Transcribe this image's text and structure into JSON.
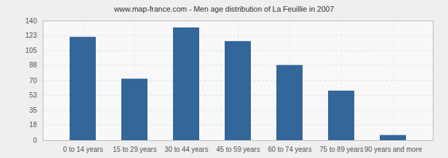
{
  "chart_data": {
    "type": "bar",
    "title": "www.map-france.com - Men age distribution of La Feuillie in 2007",
    "categories": [
      "0 to 14 years",
      "15 to 29 years",
      "30 to 44 years",
      "45 to 59 years",
      "60 to 74 years",
      "75 to 89 years",
      "90 years and more"
    ],
    "values": [
      121,
      72,
      132,
      116,
      88,
      58,
      6
    ],
    "color": "#336699",
    "ylim": [
      0,
      140
    ],
    "yticks": [
      0,
      18,
      35,
      53,
      70,
      88,
      105,
      123,
      140
    ],
    "grid": true
  }
}
